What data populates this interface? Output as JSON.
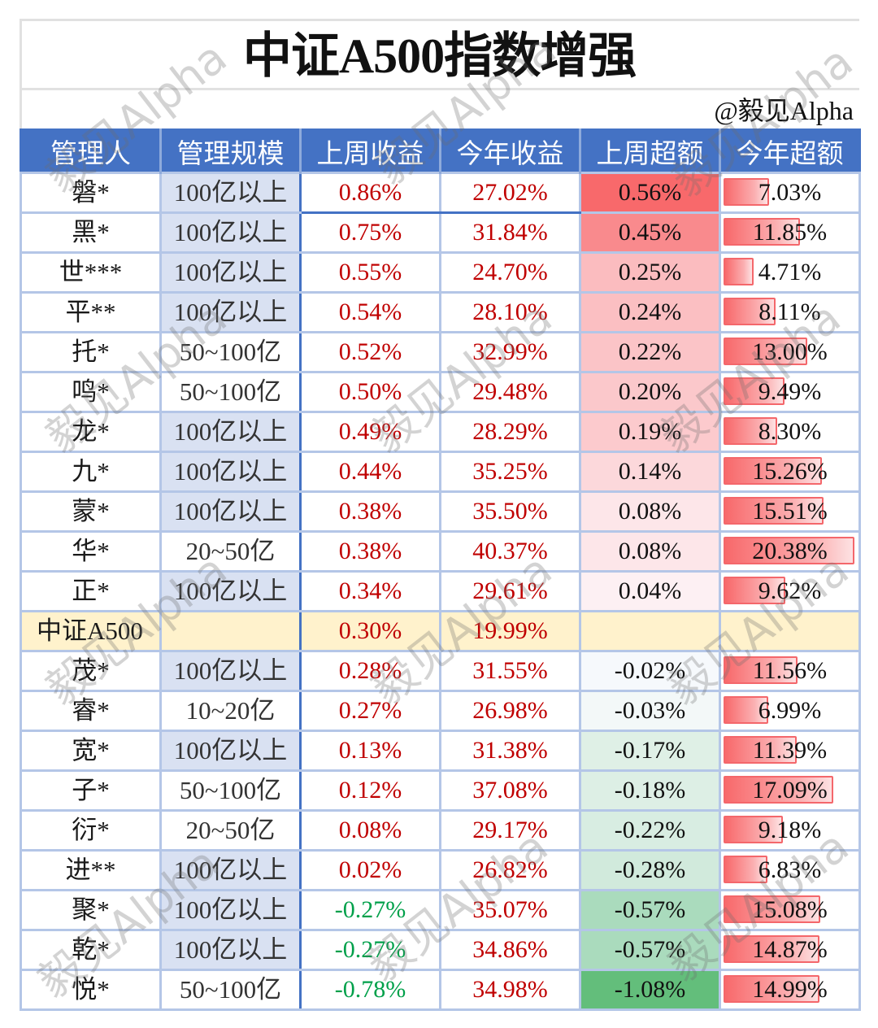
{
  "page": {
    "title": "中证A500指数增强",
    "credit": "@毅见Alpha",
    "watermark": "毅见Alpha"
  },
  "colors": {
    "header_bg": "#4472c4",
    "header_text": "#ffffff",
    "scale_highlight_bg": "#d9e1f2",
    "index_row_bg": "#fff2cc",
    "positive_text": "#c00000",
    "negative_text": "#00a04a",
    "data_bar": "#f8696b",
    "grid_line": "#b4c6e7"
  },
  "table": {
    "columns": [
      "管理人",
      "管理规模",
      "上周收益",
      "今年收益",
      "上周超额",
      "今年超额"
    ],
    "rows": [
      {
        "manager": "磐*",
        "scale": "100亿以上",
        "scale_highlight": true,
        "week_return": "0.86%",
        "ytd_return": "27.02%",
        "week_excess": "0.56%",
        "week_excess_color": "#f8696b",
        "ytd_excess": "7.03%"
      },
      {
        "manager": "黑*",
        "scale": "100亿以上",
        "scale_highlight": true,
        "week_return": "0.75%",
        "ytd_return": "31.84%",
        "week_excess": "0.45%",
        "week_excess_color": "#f98a8d",
        "ytd_excess": "11.85%"
      },
      {
        "manager": "世***",
        "scale": "100亿以上",
        "scale_highlight": true,
        "week_return": "0.55%",
        "ytd_return": "24.70%",
        "week_excess": "0.25%",
        "week_excess_color": "#fbbcbf",
        "ytd_excess": "4.71%"
      },
      {
        "manager": "平**",
        "scale": "100亿以上",
        "scale_highlight": true,
        "week_return": "0.54%",
        "ytd_return": "28.10%",
        "week_excess": "0.24%",
        "week_excess_color": "#fbbfc2",
        "ytd_excess": "8.11%"
      },
      {
        "manager": "托*",
        "scale": "50~100亿",
        "scale_highlight": false,
        "week_return": "0.52%",
        "ytd_return": "32.99%",
        "week_excess": "0.22%",
        "week_excess_color": "#fbc4c7",
        "ytd_excess": "13.00%"
      },
      {
        "manager": "鸣*",
        "scale": "50~100亿",
        "scale_highlight": false,
        "week_return": "0.50%",
        "ytd_return": "29.48%",
        "week_excess": "0.20%",
        "week_excess_color": "#fbc8cb",
        "ytd_excess": "9.49%"
      },
      {
        "manager": "龙*",
        "scale": "100亿以上",
        "scale_highlight": true,
        "week_return": "0.49%",
        "ytd_return": "28.29%",
        "week_excess": "0.19%",
        "week_excess_color": "#fccacd",
        "ytd_excess": "8.30%"
      },
      {
        "manager": "九*",
        "scale": "100亿以上",
        "scale_highlight": true,
        "week_return": "0.44%",
        "ytd_return": "35.25%",
        "week_excess": "0.14%",
        "week_excess_color": "#fcd8db",
        "ytd_excess": "15.26%"
      },
      {
        "manager": "蒙*",
        "scale": "100亿以上",
        "scale_highlight": true,
        "week_return": "0.38%",
        "ytd_return": "35.50%",
        "week_excess": "0.08%",
        "week_excess_color": "#fde6e9",
        "ytd_excess": "15.51%"
      },
      {
        "manager": "华*",
        "scale": "20~50亿",
        "scale_highlight": false,
        "week_return": "0.38%",
        "ytd_return": "40.37%",
        "week_excess": "0.08%",
        "week_excess_color": "#fde6e9",
        "ytd_excess": "20.38%"
      },
      {
        "manager": "正*",
        "scale": "100亿以上",
        "scale_highlight": true,
        "week_return": "0.34%",
        "ytd_return": "29.61%",
        "week_excess": "0.04%",
        "week_excess_color": "#fdf0f3",
        "ytd_excess": "9.62%"
      },
      {
        "manager": "中证A500",
        "scale": "",
        "scale_highlight": false,
        "is_index": true,
        "week_return": "0.30%",
        "ytd_return": "19.99%",
        "week_excess": "",
        "week_excess_color": "",
        "ytd_excess": ""
      },
      {
        "manager": "茂*",
        "scale": "100亿以上",
        "scale_highlight": true,
        "week_return": "0.28%",
        "ytd_return": "31.55%",
        "week_excess": "-0.02%",
        "week_excess_color": "#f6f9fc",
        "ytd_excess": "11.56%"
      },
      {
        "manager": "睿*",
        "scale": "10~20亿",
        "scale_highlight": false,
        "week_return": "0.27%",
        "ytd_return": "26.98%",
        "week_excess": "-0.03%",
        "week_excess_color": "#f3f8f8",
        "ytd_excess": "6.99%"
      },
      {
        "manager": "宽*",
        "scale": "100亿以上",
        "scale_highlight": true,
        "week_return": "0.13%",
        "ytd_return": "31.38%",
        "week_excess": "-0.17%",
        "week_excess_color": "#dff0e6",
        "ytd_excess": "11.39%"
      },
      {
        "manager": "子*",
        "scale": "50~100亿",
        "scale_highlight": false,
        "week_return": "0.12%",
        "ytd_return": "37.08%",
        "week_excess": "-0.18%",
        "week_excess_color": "#ddefe5",
        "ytd_excess": "17.09%"
      },
      {
        "manager": "衍*",
        "scale": "20~50亿",
        "scale_highlight": false,
        "week_return": "0.08%",
        "ytd_return": "29.17%",
        "week_excess": "-0.22%",
        "week_excess_color": "#d8ede2",
        "ytd_excess": "9.18%"
      },
      {
        "manager": "进**",
        "scale": "100亿以上",
        "scale_highlight": true,
        "week_return": "0.02%",
        "ytd_return": "26.82%",
        "week_excess": "-0.28%",
        "week_excess_color": "#d1eadc",
        "ytd_excess": "6.83%"
      },
      {
        "manager": "聚*",
        "scale": "100亿以上",
        "scale_highlight": true,
        "week_return": "-0.27%",
        "ytd_return": "35.07%",
        "week_excess": "-0.57%",
        "week_excess_color": "#aadbbd",
        "ytd_excess": "15.08%"
      },
      {
        "manager": "乾*",
        "scale": "100亿以上",
        "scale_highlight": true,
        "week_return": "-0.27%",
        "ytd_return": "34.86%",
        "week_excess": "-0.57%",
        "week_excess_color": "#aadbbd",
        "ytd_excess": "14.87%"
      },
      {
        "manager": "悦*",
        "scale": "50~100亿",
        "scale_highlight": false,
        "week_return": "-0.78%",
        "ytd_return": "34.98%",
        "week_excess": "-1.08%",
        "week_excess_color": "#63be7b",
        "ytd_excess": "14.99%"
      }
    ]
  },
  "chart_data": {
    "type": "table",
    "title": "中证A500指数增强",
    "subtitle": "@毅见Alpha",
    "columns": [
      "管理人",
      "管理规模",
      "上周收益",
      "今年收益",
      "上周超额",
      "今年超额"
    ],
    "categories": [
      "磐*",
      "黑*",
      "世***",
      "平**",
      "托*",
      "鸣*",
      "龙*",
      "九*",
      "蒙*",
      "华*",
      "正*",
      "中证A500",
      "茂*",
      "睿*",
      "宽*",
      "子*",
      "衍*",
      "进**",
      "聚*",
      "乾*",
      "悦*"
    ],
    "series": [
      {
        "name": "管理规模",
        "values": [
          "100亿以上",
          "100亿以上",
          "100亿以上",
          "100亿以上",
          "50~100亿",
          "50~100亿",
          "100亿以上",
          "100亿以上",
          "100亿以上",
          "20~50亿",
          "100亿以上",
          "",
          "100亿以上",
          "10~20亿",
          "100亿以上",
          "50~100亿",
          "20~50亿",
          "100亿以上",
          "100亿以上",
          "100亿以上",
          "50~100亿"
        ]
      },
      {
        "name": "上周收益(%)",
        "values": [
          0.86,
          0.75,
          0.55,
          0.54,
          0.52,
          0.5,
          0.49,
          0.44,
          0.38,
          0.38,
          0.34,
          0.3,
          0.28,
          0.27,
          0.13,
          0.12,
          0.08,
          0.02,
          -0.27,
          -0.27,
          -0.78
        ]
      },
      {
        "name": "今年收益(%)",
        "values": [
          27.02,
          31.84,
          24.7,
          28.1,
          32.99,
          29.48,
          28.29,
          35.25,
          35.5,
          40.37,
          29.61,
          19.99,
          31.55,
          26.98,
          31.38,
          37.08,
          29.17,
          26.82,
          35.07,
          34.86,
          34.98
        ]
      },
      {
        "name": "上周超额(%)",
        "values": [
          0.56,
          0.45,
          0.25,
          0.24,
          0.22,
          0.2,
          0.19,
          0.14,
          0.08,
          0.08,
          0.04,
          null,
          -0.02,
          -0.03,
          -0.17,
          -0.18,
          -0.22,
          -0.28,
          -0.57,
          -0.57,
          -1.08
        ]
      },
      {
        "name": "今年超额(%)",
        "values": [
          7.03,
          11.85,
          4.71,
          8.11,
          13.0,
          9.49,
          8.3,
          15.26,
          15.51,
          20.38,
          9.62,
          null,
          11.56,
          6.99,
          11.39,
          17.09,
          9.18,
          6.83,
          15.08,
          14.87,
          14.99
        ]
      }
    ],
    "annotations": [
      "上周超额 heatmap: red (positive) to green (negative)",
      "今年超额 shown with red data bars"
    ]
  }
}
